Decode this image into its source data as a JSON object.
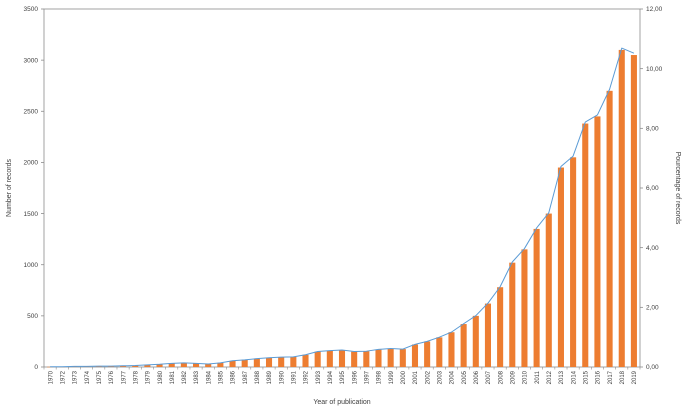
{
  "chart_data": {
    "type": "bar",
    "title": "",
    "xlabel": "Year of publication",
    "grid": false,
    "legend": false,
    "categories": [
      1970,
      1972,
      1973,
      1974,
      1975,
      1976,
      1977,
      1978,
      1979,
      1980,
      1981,
      1982,
      1983,
      1984,
      1985,
      1986,
      1987,
      1988,
      1989,
      1990,
      1991,
      1992,
      1993,
      1994,
      1995,
      1996,
      1997,
      1998,
      1999,
      2000,
      2001,
      2002,
      2003,
      2004,
      2005,
      2006,
      2007,
      2008,
      2009,
      2010,
      2011,
      2012,
      2013,
      2014,
      2015,
      2016,
      2017,
      2018,
      2019
    ],
    "series": [
      {
        "name": "Number of records",
        "type": "bar",
        "axis": "left",
        "color": "#ED7D31",
        "values": [
          2,
          3,
          5,
          5,
          8,
          10,
          12,
          15,
          20,
          25,
          35,
          40,
          35,
          30,
          40,
          60,
          70,
          80,
          90,
          95,
          100,
          120,
          150,
          160,
          165,
          150,
          155,
          170,
          180,
          175,
          220,
          250,
          290,
          340,
          420,
          500,
          620,
          780,
          1020,
          1150,
          1350,
          1500,
          1950,
          2050,
          2380,
          2450,
          2700,
          3100,
          3050
        ]
      },
      {
        "name": "Pourcentage of records",
        "type": "line",
        "axis": "right",
        "color": "#5B9BD5",
        "values": [
          0.01,
          0.01,
          0.02,
          0.02,
          0.03,
          0.03,
          0.04,
          0.05,
          0.07,
          0.09,
          0.12,
          0.14,
          0.12,
          0.1,
          0.14,
          0.21,
          0.24,
          0.28,
          0.31,
          0.33,
          0.34,
          0.41,
          0.52,
          0.55,
          0.57,
          0.52,
          0.53,
          0.59,
          0.62,
          0.6,
          0.76,
          0.86,
          1.0,
          1.17,
          1.45,
          1.72,
          2.14,
          2.69,
          3.52,
          3.97,
          4.66,
          5.17,
          6.72,
          7.07,
          8.21,
          8.45,
          9.31,
          10.69,
          10.52
        ]
      }
    ],
    "left_axis": {
      "label": "Number of records",
      "min": 0,
      "max": 3500,
      "step": 500,
      "tick_labels": [
        "0",
        "500",
        "1000",
        "1500",
        "2000",
        "2500",
        "3000",
        "3500"
      ]
    },
    "right_axis": {
      "label": "Pourcentage of records",
      "min": 0,
      "max": 12,
      "step": 2,
      "tick_labels": [
        "0,00",
        "2,00",
        "4,00",
        "6,00",
        "8,00",
        "10,00",
        "12,00"
      ]
    },
    "x_axis": {
      "label": "Year of publication"
    }
  },
  "colors": {
    "bar": "#ED7D31",
    "line": "#5B9BD5",
    "axis": "#8c8c8c",
    "text": "#3f3f3f",
    "background": "#FFFFFF"
  }
}
